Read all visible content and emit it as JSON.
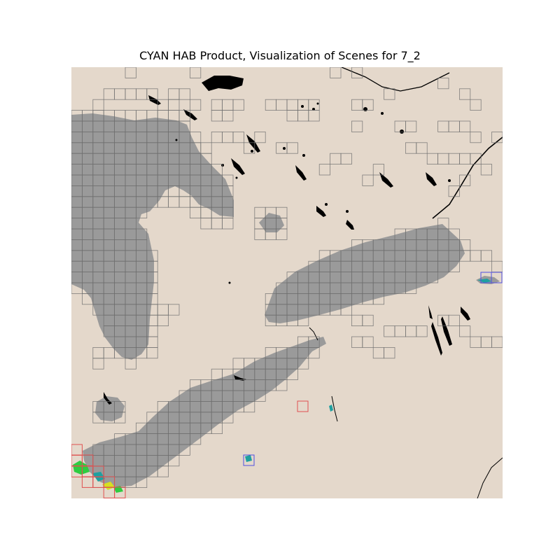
{
  "title": "CYAN HAB Product, Visualization of Scenes for 7_2",
  "colors": {
    "land": "#e4d8cb",
    "water": "#9a9a9a",
    "grid": "#6e6e6e",
    "features": "#000000",
    "tile_red": "#e05050",
    "tile_blue": "#5050e0",
    "bloom_green": "#2ecc40",
    "bloom_teal": "#1fa0a0",
    "bloom_yellow": "#d6e020"
  },
  "legend": []
}
